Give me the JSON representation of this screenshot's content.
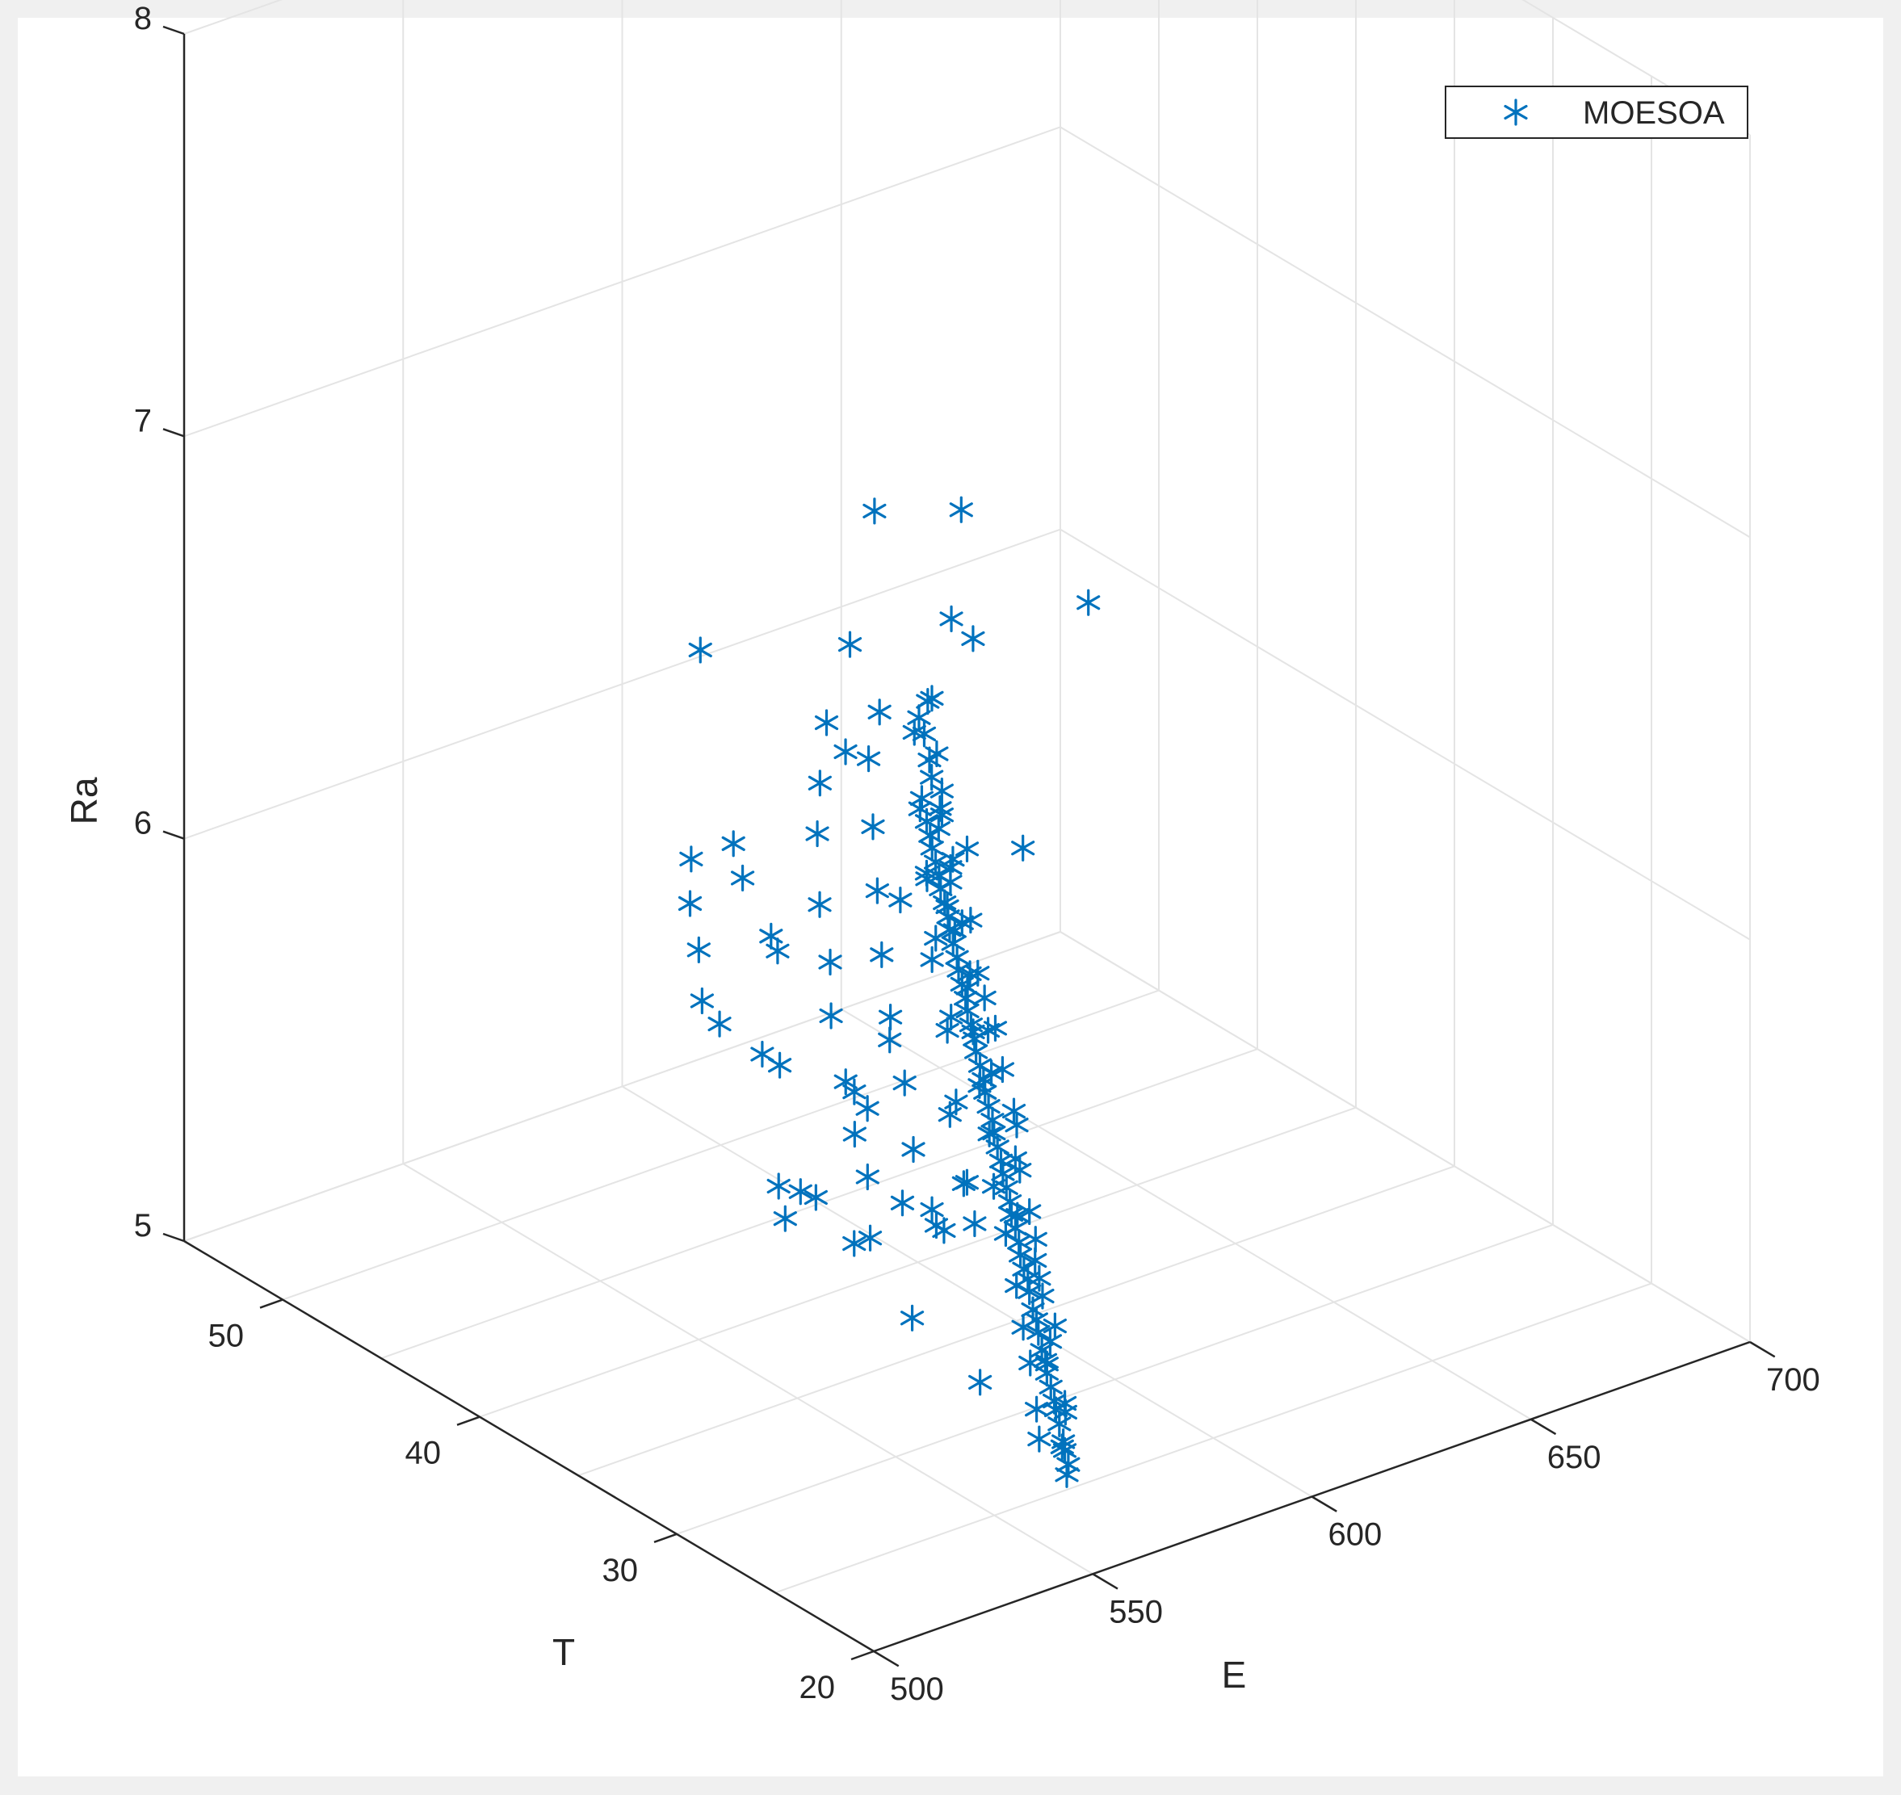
{
  "chart_data": {
    "type": "scatter3d",
    "title": "",
    "xlabel": "E",
    "ylabel": "T",
    "zlabel": "Ra",
    "xlim": [
      500,
      700
    ],
    "ylim": [
      20,
      55
    ],
    "zlim": [
      5,
      8
    ],
    "xticks": [
      "500",
      "550",
      "600",
      "650",
      "700"
    ],
    "yticks": [
      "20",
      "30",
      "40",
      "50"
    ],
    "zticks": [
      "5",
      "6",
      "7",
      "8"
    ],
    "grid": true,
    "legend_position": "top-right",
    "marker": "*",
    "color": "#0072bd",
    "series": [
      {
        "name": "MOESOA",
        "points": [
          [
            550.8,
            21.5,
            5.2
          ],
          [
            552.5,
            21.8,
            5.21
          ],
          [
            554.4,
            22.4,
            5.22
          ],
          [
            556.3,
            22.9,
            5.22
          ],
          [
            558.1,
            23.5,
            5.24
          ],
          [
            560,
            24.1,
            5.25
          ],
          [
            561.9,
            24.6,
            5.25
          ],
          [
            563.8,
            25.2,
            5.26
          ],
          [
            565.6,
            25.8,
            5.27
          ],
          [
            567.5,
            26.3,
            5.28
          ],
          [
            569.4,
            26.9,
            5.28
          ],
          [
            571.3,
            27.5,
            5.3
          ],
          [
            573.1,
            28,
            5.31
          ],
          [
            575,
            28.6,
            5.31
          ],
          [
            576.9,
            29.2,
            5.33
          ],
          [
            578.8,
            29.7,
            5.34
          ],
          [
            580.6,
            30.3,
            5.34
          ],
          [
            582.5,
            30.9,
            5.35
          ],
          [
            584.4,
            31.4,
            5.36
          ],
          [
            586.3,
            32,
            5.37
          ],
          [
            588.1,
            32.6,
            5.38
          ],
          [
            590,
            33.1,
            5.39
          ],
          [
            591.9,
            33.7,
            5.4
          ],
          [
            593.8,
            34.3,
            5.41
          ],
          [
            595.6,
            34.8,
            5.42
          ],
          [
            597.5,
            35.4,
            5.43
          ],
          [
            599.4,
            36,
            5.44
          ],
          [
            601.3,
            36.5,
            5.45
          ],
          [
            603.1,
            37.1,
            5.46
          ],
          [
            605,
            37.7,
            5.47
          ],
          [
            606.9,
            38.2,
            5.48
          ],
          [
            608.8,
            38.8,
            5.49
          ],
          [
            610.6,
            39.4,
            5.5
          ],
          [
            612.5,
            39.9,
            5.51
          ],
          [
            614.4,
            40.5,
            5.52
          ],
          [
            616.3,
            41.1,
            5.53
          ],
          [
            618.1,
            41.6,
            5.54
          ],
          [
            620,
            42.2,
            5.55
          ],
          [
            621.9,
            42.8,
            5.56
          ],
          [
            623.8,
            43.3,
            5.57
          ],
          [
            625.6,
            43.9,
            5.58
          ],
          [
            627.5,
            44.5,
            5.59
          ],
          [
            629.4,
            45,
            5.6
          ],
          [
            631.3,
            45.6,
            5.61
          ],
          [
            633.1,
            46.2,
            5.62
          ],
          [
            635,
            46.7,
            5.63
          ],
          [
            636.9,
            47.3,
            5.64
          ],
          [
            638.8,
            47.9,
            5.65
          ],
          [
            640.6,
            48.4,
            5.66
          ],
          [
            642.5,
            49,
            5.67
          ],
          [
            552,
            22,
            5.25
          ],
          [
            555,
            22.5,
            5.31
          ],
          [
            558,
            23.2,
            5.3
          ],
          [
            560.7,
            24.3,
            5.45
          ],
          [
            562,
            25,
            5.33
          ],
          [
            565,
            25.5,
            5.36
          ],
          [
            567,
            26.5,
            5.48
          ],
          [
            570,
            27,
            5.41
          ],
          [
            572,
            27.8,
            5.52
          ],
          [
            574.6,
            28.4,
            5.44
          ],
          [
            577.8,
            29.4,
            5.52
          ],
          [
            580,
            30.5,
            5.47
          ],
          [
            582.7,
            31.2,
            5.58
          ],
          [
            586.4,
            31.8,
            5.52
          ],
          [
            589.1,
            32.7,
            5.63
          ],
          [
            592,
            33.2,
            5.57
          ],
          [
            594.6,
            34.5,
            5.66
          ],
          [
            597,
            35.6,
            5.61
          ],
          [
            600.6,
            36.2,
            5.69
          ],
          [
            603.9,
            37.3,
            5.64
          ],
          [
            606.5,
            38.4,
            5.74
          ],
          [
            610.1,
            39.6,
            5.69
          ],
          [
            613.4,
            40.3,
            5.79
          ],
          [
            616.4,
            41.4,
            5.74
          ],
          [
            619.7,
            42.6,
            5.85
          ],
          [
            623.2,
            43.5,
            5.79
          ],
          [
            626.2,
            44.7,
            5.89
          ],
          [
            629.8,
            45.4,
            5.84
          ],
          [
            633.1,
            46.4,
            5.95
          ],
          [
            636.4,
            47.5,
            5.89
          ],
          [
            639.6,
            48.3,
            6.0
          ],
          [
            641.2,
            49.1,
            5.93
          ],
          [
            553.5,
            23.5,
            5.22
          ],
          [
            557.4,
            24.5,
            5.25
          ],
          [
            561.8,
            25.8,
            5.31
          ],
          [
            566.5,
            27.2,
            5.34
          ],
          [
            571.7,
            28.7,
            5.38
          ],
          [
            576.9,
            30.4,
            5.44
          ],
          [
            583.6,
            32.5,
            5.47
          ],
          [
            589.8,
            34.1,
            5.53
          ],
          [
            595.2,
            35.8,
            5.58
          ],
          [
            601.4,
            37.5,
            5.64
          ],
          [
            607.3,
            39.1,
            5.68
          ],
          [
            612.5,
            40.9,
            5.75
          ],
          [
            618.7,
            42.5,
            5.8
          ],
          [
            624.1,
            44.3,
            5.86
          ],
          [
            630.6,
            46.1,
            5.91
          ],
          [
            636.1,
            47.7,
            5.95
          ],
          [
            641.9,
            48.6,
            5.99
          ],
          [
            568,
            30,
            5.51
          ],
          [
            573,
            31.5,
            5.55
          ],
          [
            579,
            33,
            5.48
          ],
          [
            584,
            34.5,
            5.62
          ],
          [
            589.8,
            36.1,
            5.52
          ],
          [
            595,
            37.2,
            5.71
          ],
          [
            600,
            38.5,
            5.62
          ],
          [
            605,
            40.2,
            5.78
          ],
          [
            610,
            41.5,
            5.67
          ],
          [
            615.5,
            43,
            5.82
          ],
          [
            621,
            44.2,
            5.75
          ],
          [
            627,
            45.8,
            5.88
          ],
          [
            632,
            47,
            5.8
          ],
          [
            637,
            48.4,
            5.93
          ],
          [
            574,
            33.5,
            5.42
          ],
          [
            581,
            36,
            5.47
          ],
          [
            588,
            38,
            5.55
          ],
          [
            596,
            40.5,
            5.61
          ],
          [
            603,
            42.5,
            5.68
          ],
          [
            611,
            44.5,
            5.75
          ],
          [
            619,
            46.5,
            5.82
          ],
          [
            627,
            48.5,
            5.9
          ],
          [
            634,
            49.5,
            5.96
          ],
          [
            555.4,
            32.5,
            5.45
          ],
          [
            562,
            34.1,
            5.53
          ],
          [
            568.5,
            36.2,
            5.55
          ],
          [
            575,
            38.1,
            5.6
          ],
          [
            582,
            40.4,
            5.67
          ],
          [
            589,
            42,
            5.73
          ],
          [
            596.5,
            44.2,
            5.78
          ],
          [
            604.5,
            46.1,
            5.87
          ],
          [
            613.2,
            47.9,
            5.91
          ],
          [
            621.9,
            49.5,
            5.98
          ],
          [
            605.5,
            40,
            6.15
          ],
          [
            615,
            38,
            6.03
          ],
          [
            606,
            45,
            6.1
          ],
          [
            616,
            47,
            6.27
          ],
          [
            627,
            44.3,
            6.37
          ],
          [
            636,
            45.2,
            6.26
          ],
          [
            645,
            47.8,
            6.47
          ],
          [
            586,
            33.5,
            5.9
          ],
          [
            572,
            35.2,
            5.8
          ],
          [
            607.9,
            33.1,
            6.81
          ],
          [
            591.3,
            49.1,
            6.29
          ],
          [
            621.6,
            47,
            6.58
          ],
          [
            600,
            37.5,
            6.1
          ],
          [
            578.4,
            33.7,
            6.15
          ],
          [
            560,
            39,
            5.7
          ],
          [
            566,
            42.5,
            5.65
          ],
          [
            571,
            44.5,
            5.63
          ],
          [
            577,
            46,
            5.69
          ],
          [
            584,
            48,
            5.72
          ],
          [
            591,
            49.5,
            5.76
          ],
          [
            572.5,
            41,
            5.85
          ],
          [
            580,
            43,
            5.8
          ],
          [
            587,
            46,
            5.83
          ],
          [
            593,
            47.8,
            5.84
          ],
          [
            555,
            37,
            5.75
          ],
          [
            548,
            35.5,
            5.52
          ],
          [
            545,
            34.5,
            5.48
          ],
          [
            544,
            33.5,
            5.58
          ],
          [
            545,
            31,
            5.52
          ],
          [
            547,
            28.5,
            5.4
          ],
          [
            549,
            25.5,
            5.32
          ],
          [
            561,
            30,
            5.52
          ],
          [
            566,
            31.5,
            5.47
          ],
          [
            614,
            44,
            5.73
          ],
          [
            583,
            37,
            5.3
          ],
          [
            593,
            41,
            5.38
          ],
          [
            599,
            43,
            5.34
          ],
          [
            570,
            38.5,
            5.32
          ]
        ]
      }
    ]
  }
}
